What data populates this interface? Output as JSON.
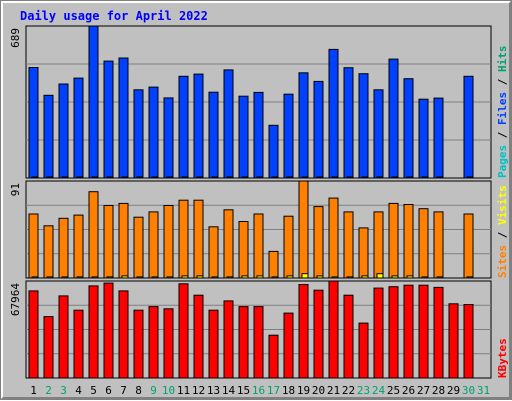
{
  "chart_data": {
    "type": "bar",
    "title": "Daily usage for April 2022",
    "categories": [
      "1",
      "2",
      "3",
      "4",
      "5",
      "6",
      "7",
      "8",
      "9",
      "10",
      "11",
      "12",
      "13",
      "14",
      "15",
      "16",
      "17",
      "18",
      "19",
      "20",
      "21",
      "22",
      "23",
      "24",
      "25",
      "26",
      "27",
      "28",
      "29",
      "30",
      "31"
    ],
    "weekend_days": [
      "2",
      "3",
      "9",
      "10",
      "16",
      "17",
      "23",
      "24",
      "30",
      "31"
    ],
    "panels": [
      {
        "id": "hits",
        "max_label": "689",
        "ylim": [
          0,
          689
        ],
        "side_label": [
          {
            "text": "Pages",
            "color": "#00c0c0"
          },
          {
            "text": " / ",
            "color": "#000000"
          },
          {
            "text": "Files",
            "color": "#0040ff"
          },
          {
            "text": " / ",
            "color": "#000000"
          },
          {
            "text": "Hits",
            "color": "#00a070"
          }
        ],
        "series": [
          {
            "name": "Hits",
            "color": "#0040ff",
            "values": [
              501,
              375,
              426,
              453,
              689,
              530,
              544,
              400,
              412,
              363,
              461,
              471,
              389,
              490,
              371,
              388,
              239,
              380,
              477,
              438,
              583,
              500,
              473,
              400,
              539,
              450,
              357,
              362,
              0,
              461,
              0
            ]
          },
          {
            "name": "Files",
            "color": "#0040ff",
            "values": [
              4,
              2,
              2,
              3,
              4,
              4,
              4,
              3,
              3,
              2,
              3,
              4,
              3,
              4,
              2,
              3,
              2,
              3,
              4,
              3,
              4,
              4,
              3,
              3,
              4,
              3,
              3,
              2,
              0,
              4,
              0
            ]
          },
          {
            "name": "Pages",
            "color": "#00c0c0",
            "values": [
              1,
              1,
              1,
              1,
              1,
              1,
              1,
              1,
              1,
              1,
              1,
              1,
              1,
              1,
              1,
              1,
              1,
              1,
              1,
              1,
              1,
              1,
              1,
              1,
              1,
              1,
              1,
              1,
              0,
              1,
              0
            ]
          }
        ]
      },
      {
        "id": "visits",
        "max_label": "91",
        "ylim": [
          0,
          91
        ],
        "side_label": [
          {
            "text": "Sites",
            "color": "#ff8000"
          },
          {
            "text": " / ",
            "color": "#000000"
          },
          {
            "text": "Visits",
            "color": "#ffff00"
          }
        ],
        "series": [
          {
            "name": "Visits",
            "color": "#ff8000",
            "values": [
              60,
              49,
              56,
              59,
              81,
              68,
              70,
              57,
              62,
              68,
              73,
              73,
              48,
              64,
              53,
              60,
              25,
              58,
              91,
              67,
              75,
              62,
              47,
              62,
              70,
              69,
              65,
              62,
              0,
              60,
              0
            ]
          },
          {
            "name": "Sites",
            "color": "#ffff00",
            "values": [
              1,
              1,
              1,
              1,
              1,
              1,
              2,
              1,
              1,
              1,
              2,
              2,
              1,
              1,
              2,
              2,
              1,
              2,
              4,
              2,
              1,
              1,
              2,
              4,
              2,
              2,
              1,
              1,
              0,
              1,
              0
            ]
          }
        ]
      },
      {
        "id": "kbytes",
        "max_label": "67964",
        "ylim": [
          0,
          67964
        ],
        "side_label": [
          {
            "text": "KBytes",
            "color": "#ff0000"
          }
        ],
        "series": [
          {
            "name": "KBytes",
            "color": "#ff0000",
            "values": [
              61000,
              43000,
              57500,
              47500,
              64500,
              66500,
              61000,
              47500,
              50000,
              48500,
              66000,
              58000,
              47500,
              54000,
              50000,
              50000,
              30000,
              45500,
              65500,
              61500,
              67964,
              58000,
              38500,
              63000,
              64000,
              65000,
              65000,
              63500,
              52000,
              51500,
              0
            ]
          }
        ]
      }
    ]
  },
  "colors": {
    "title": "#0000ff",
    "plot_background": "#c0c0c0",
    "grid": "#808080",
    "weekday_label": "#000000",
    "weekend_label": "#00a070",
    "bar_edge": "#000000"
  }
}
